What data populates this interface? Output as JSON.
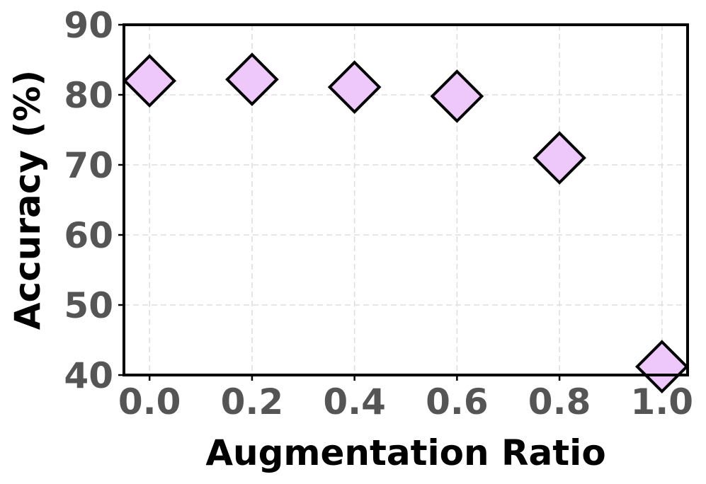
{
  "chart_data": {
    "type": "scatter",
    "title": "",
    "xlabel": "Augmentation Ratio",
    "ylabel": "Accuracy (%)",
    "x": [
      0.0,
      0.2,
      0.4,
      0.6,
      0.8,
      1.0
    ],
    "y": [
      82.0,
      82.2,
      81.1,
      79.8,
      71.0,
      41.2
    ],
    "xticks": [
      "0.0",
      "0.2",
      "0.4",
      "0.6",
      "0.8",
      "1.0"
    ],
    "yticks": [
      "40",
      "50",
      "60",
      "70",
      "80",
      "90"
    ],
    "xlim": [
      -0.05,
      1.05
    ],
    "ylim": [
      40,
      90
    ],
    "grid": true,
    "marker": "diamond",
    "marker_color": "#eec7fb",
    "marker_edge_color": "#000000"
  }
}
